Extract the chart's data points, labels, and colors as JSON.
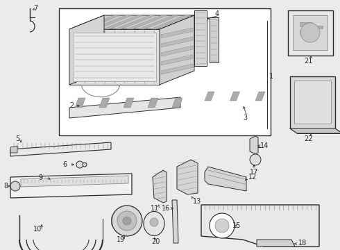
{
  "bg_color": "#ebebeb",
  "line_color": "#2a2a2a",
  "mid_gray": "#888888",
  "fill_light": "#f5f5f5",
  "fill_mid": "#d8d8d8",
  "fill_dark": "#bbbbbb"
}
